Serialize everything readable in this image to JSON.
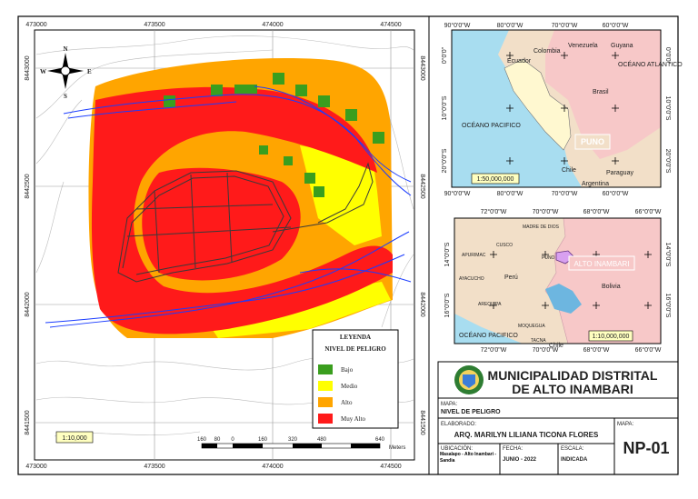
{
  "main_map": {
    "x_ticks": [
      "473000",
      "473500",
      "474000",
      "474500"
    ],
    "y_ticks": [
      "8443000",
      "8442500",
      "8442000",
      "8441500"
    ],
    "north": [
      "N",
      "S",
      "E",
      "W"
    ],
    "scale": "1:10,000",
    "scale_bar": [
      "160",
      "80",
      "0",
      "160",
      "320",
      "480",
      "640"
    ],
    "unit": "Meters"
  },
  "legend": {
    "title": "LEYENDA",
    "subtitle": "NIVEL DE PELIGRO",
    "items": [
      {
        "label": "Bajo",
        "color": "#3a9e1e"
      },
      {
        "label": "Medio",
        "color": "#ffff00"
      },
      {
        "label": "Alto",
        "color": "#ffa500"
      },
      {
        "label": "Muy Alto",
        "color": "#ff1a1a"
      }
    ]
  },
  "inset_country": {
    "lon_ticks": [
      "90°0'0\"W",
      "80°0'0\"W",
      "70°0'0\"W",
      "60°0'0\"W"
    ],
    "lat_ticks": [
      "0°0'0\"",
      "10°0'0\"S",
      "20°0'0\"S"
    ],
    "places": [
      "Colombia",
      "Venezuela",
      "Guyana",
      "Ecuador",
      "OCÉANO ATLANTICO",
      "Brasil",
      "OCÉANO PACIFICO",
      "PUNO",
      "Chile",
      "Paraguay",
      "Argentina"
    ],
    "scale": "1:50,000,000"
  },
  "inset_region": {
    "lon_ticks": [
      "72°0'0\"W",
      "70°0'0\"W",
      "68°0'0\"W",
      "66°0'0\"W"
    ],
    "lat_ticks": [
      "14°0'0\"S",
      "16°0'0\"S"
    ],
    "places": [
      "MADRE DE DIOS",
      "CUSCO",
      "APURIMAC",
      "PUNO",
      "AYACUCHO",
      "Perú",
      "AREQUIPA",
      "MOQUEGUA",
      "TACNA",
      "Chile",
      "OCÉANO PACIFICO",
      "Bolivia",
      "ALTO INAMBARI"
    ],
    "scale": "1:10,000,000"
  },
  "title_block": {
    "org_line1": "MUNICIPALIDAD DISTRITAL",
    "org_line2": "DE ALTO INAMBARI",
    "map_label": "MAPA:",
    "map_name": "NIVEL DE PELIGRO",
    "author_label": "ELABORADO:",
    "author": "ARQ. MARILYN LILIANA TICONA FLORES",
    "code_label": "MAPA:",
    "code": "NP-01",
    "location_label": "UBICACIÓN:",
    "location": "Masalapo - Alto Inambari - Sandia",
    "date_label": "FECHA:",
    "date": "JUNIO - 2022",
    "scale_label": "ESCALA:",
    "scale": "INDICADA"
  }
}
